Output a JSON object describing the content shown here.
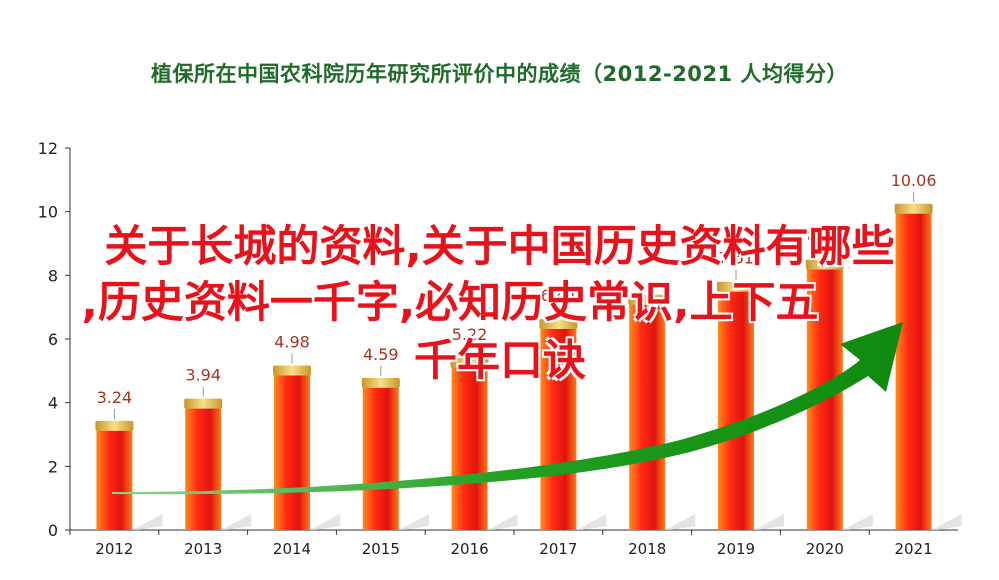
{
  "chart_data": {
    "type": "bar",
    "title": "植保所在中国农科院历年研究所评价中的成绩（2012-2021 人均得分）",
    "categories": [
      "2012",
      "2013",
      "2014",
      "2015",
      "2016",
      "2017",
      "2018",
      "2019",
      "2020",
      "2021"
    ],
    "values": [
      3.24,
      3.94,
      4.98,
      4.59,
      5.22,
      6.44,
      7.2,
      7.61,
      8.31,
      10.06
    ],
    "value_labels": [
      "3.24",
      "3.94",
      "4.98",
      "4.59",
      "5.22",
      "6.44",
      "",
      "7.61",
      "8.31",
      "10.06"
    ],
    "ylim": [
      0,
      12
    ],
    "yticks": [
      "0",
      "2",
      "4",
      "6",
      "8",
      "10",
      "12"
    ],
    "xlabel": "",
    "ylabel": "",
    "grid": false,
    "colors": {
      "bar_top": "#f2c23a",
      "bar_mid": "#e8231b",
      "bar_edge": "#ff9a2e",
      "arrow": "#1f9a1f",
      "label": "#c0392b"
    }
  },
  "overlay_text": {
    "line1": "关于长城的资料,关于中国历史资料有哪些",
    "line2": ",历史资料一千字,必知历史常识,上下五",
    "line3": "千年口诀"
  }
}
